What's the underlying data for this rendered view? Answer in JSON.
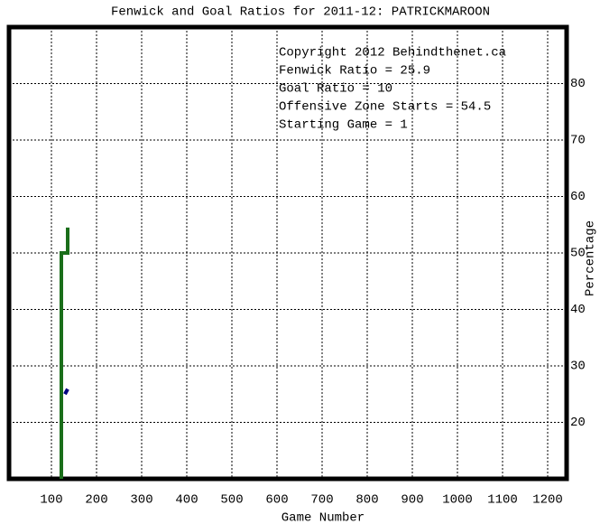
{
  "chart_data": {
    "type": "line",
    "title": "Fenwick and Goal Ratios for 2011-12: PATRICKMAROON",
    "x_label": "Game Number",
    "y_label": "Percentage",
    "annotations": [
      {
        "text": "Copyright 2012 Behindthenet.ca",
        "color": "#000000"
      },
      {
        "text": "Fenwick Ratio = 25.9",
        "color": "#000080"
      },
      {
        "text": "Goal Ratio = 10",
        "color": "#8b5a2b"
      },
      {
        "text": "Offensive Zone Starts = 54.5",
        "color": "#006400"
      },
      {
        "text": "Starting Game = 1",
        "color": "#000000"
      }
    ],
    "series": [
      {
        "name": "Offensive Zone Starts",
        "color": "#1a6e1a",
        "x": [
          122,
          122,
          136,
          136
        ],
        "values": [
          10,
          50,
          50,
          54.5
        ]
      },
      {
        "name": "Fenwick Ratio",
        "color": "#000080",
        "x": [
          130,
          136
        ],
        "values": [
          25,
          25.9
        ]
      }
    ],
    "xlim": [
      6,
      1242
    ],
    "ylim": [
      10,
      90
    ],
    "xticks": [
      100,
      200,
      300,
      400,
      500,
      600,
      700,
      800,
      900,
      1000,
      1100,
      1200
    ],
    "yticks": [
      20,
      30,
      40,
      50,
      60,
      70,
      80
    ],
    "grid": true
  }
}
